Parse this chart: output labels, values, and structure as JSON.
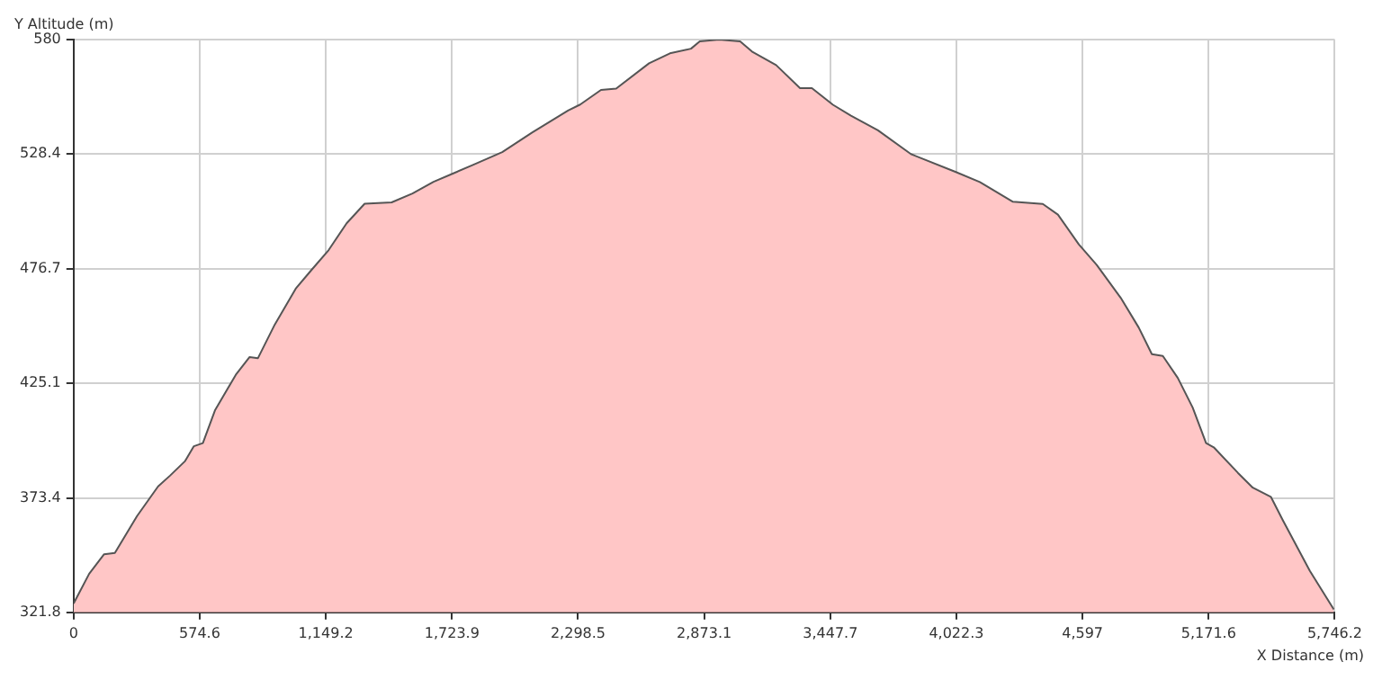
{
  "chart_data": {
    "type": "area",
    "xlabel": "X Distance (m)",
    "ylabel": "Y Altitude (m)",
    "x": [
      0,
      71,
      139,
      188,
      289,
      385,
      439,
      508,
      548,
      589,
      644,
      739,
      802,
      840,
      917,
      1012,
      1080,
      1162,
      1244,
      1326,
      1449,
      1544,
      1640,
      1735,
      1817,
      1953,
      2089,
      2253,
      2308,
      2403,
      2472,
      2622,
      2717,
      2813,
      2853,
      2941,
      3037,
      3091,
      3201,
      3310,
      3364,
      3460,
      3542,
      3665,
      3815,
      4020,
      4129,
      4280,
      4416,
      4485,
      4580,
      4662,
      4771,
      4853,
      4913,
      4963,
      5031,
      5099,
      5160,
      5195,
      5305,
      5373,
      5455,
      5510,
      5633,
      5742
    ],
    "series": [
      {
        "color": "#555555",
        "values": [
          325.8,
          339.2,
          348.0,
          348.6,
          365.2,
          378.6,
          383.4,
          390.0,
          396.7,
          398.1,
          412.8,
          428.9,
          436.9,
          436.4,
          451.6,
          467.7,
          475.7,
          485.1,
          497.2,
          506.0,
          506.6,
          510.6,
          515.9,
          519.9,
          523.4,
          529.3,
          538.1,
          548.0,
          550.7,
          557.3,
          557.9,
          569.3,
          573.8,
          575.9,
          579.2,
          580.0,
          579.2,
          574.6,
          568.5,
          558.1,
          558.1,
          550.6,
          545.7,
          539.1,
          528.4,
          520.3,
          515.8,
          506.9,
          505.9,
          501.1,
          487.7,
          478.4,
          463.6,
          450.2,
          438.2,
          437.4,
          427.5,
          414.1,
          398.1,
          396.2,
          384.7,
          378.0,
          373.9,
          363.3,
          340.5,
          323.1
        ]
      }
    ],
    "xlim": [
      0,
      5746.2
    ],
    "xticks": [
      0,
      574.6,
      {
        "value": 1149.2,
        "label": "1,149.2"
      },
      {
        "value": 1723.9,
        "label": "1,723.9"
      },
      {
        "value": 2298.5,
        "label": "2,298.5"
      },
      {
        "value": 2873.1,
        "label": "2,873.1"
      },
      {
        "value": 3447.7,
        "label": "3,447.7"
      },
      {
        "value": 4022.3,
        "label": "4,022.3"
      },
      {
        "value": 4597,
        "label": "4,597"
      },
      {
        "value": 5171.6,
        "label": "5,171.6"
      },
      {
        "value": 5746.2,
        "label": "5,746.2"
      }
    ],
    "ylim": [
      321.8,
      580
    ],
    "yticks": [
      321.8,
      373.4,
      425.1,
      476.7,
      528.4,
      580
    ],
    "grid": true,
    "legend": false,
    "marker": "none",
    "line_style": "solid"
  }
}
